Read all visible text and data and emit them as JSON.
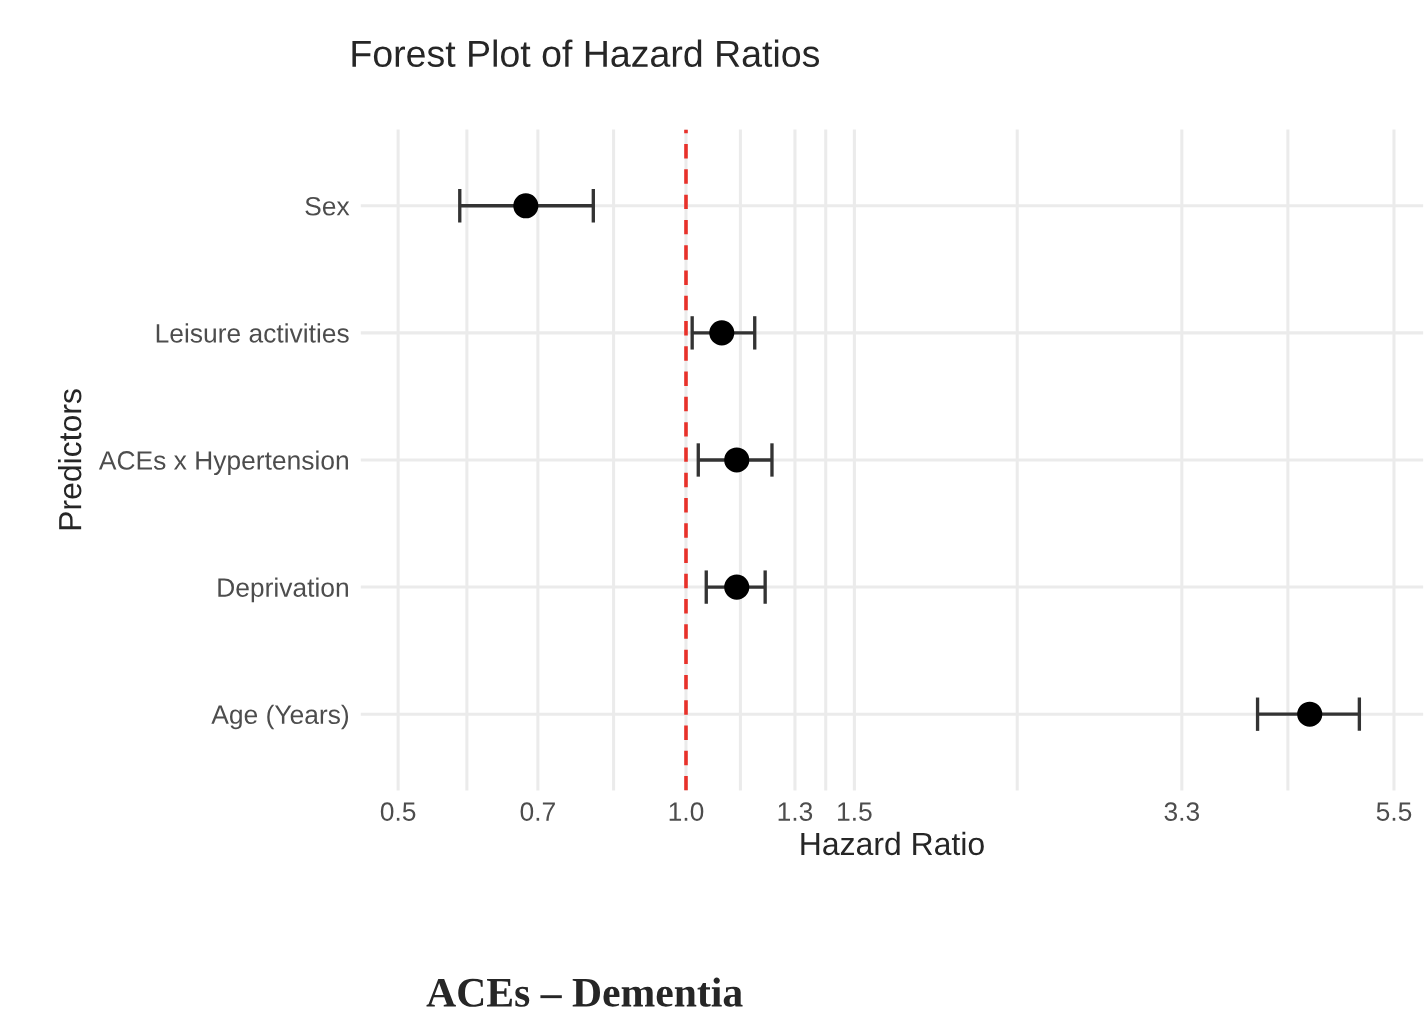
{
  "chart_data": {
    "type": "scatter",
    "orientation": "horizontal",
    "title": "Forest Plot of Hazard Ratios",
    "xlabel": "Hazard Ratio",
    "ylabel": "Predictors",
    "categories": [
      "Sex",
      "Leisure activities",
      "ACEs x Hypertension",
      "Deprivation",
      "Age (Years)"
    ],
    "values": [
      0.68,
      1.09,
      1.13,
      1.13,
      4.49
    ],
    "errors": [
      [
        0.58,
        0.8
      ],
      [
        1.015,
        1.18
      ],
      [
        1.03,
        1.23
      ],
      [
        1.05,
        1.21
      ],
      [
        3.96,
        5.06
      ]
    ],
    "color": "#000000",
    "marker": "circle",
    "log": "x",
    "xlim": [
      0.457,
      5.9
    ],
    "xticks": [
      0.5,
      {
        "value": 0.59,
        "label": null
      },
      0.7,
      {
        "value": 0.84,
        "label": null
      },
      {
        "value": 1.0,
        "label": "1.0"
      },
      {
        "value": 1.14,
        "label": null
      },
      1.3,
      {
        "value": 1.4,
        "label": null
      },
      1.5,
      {
        "value": 2.22,
        "label": null
      },
      3.3,
      {
        "value": 4.26,
        "label": null
      },
      5.5
    ],
    "grid": true,
    "ref_lines": [
      {
        "axis": "x",
        "value": 1.0,
        "label": null,
        "color": "#e8312a",
        "line_style": "dashed"
      }
    ],
    "annotations": [
      "ACEs – Dementia"
    ]
  }
}
